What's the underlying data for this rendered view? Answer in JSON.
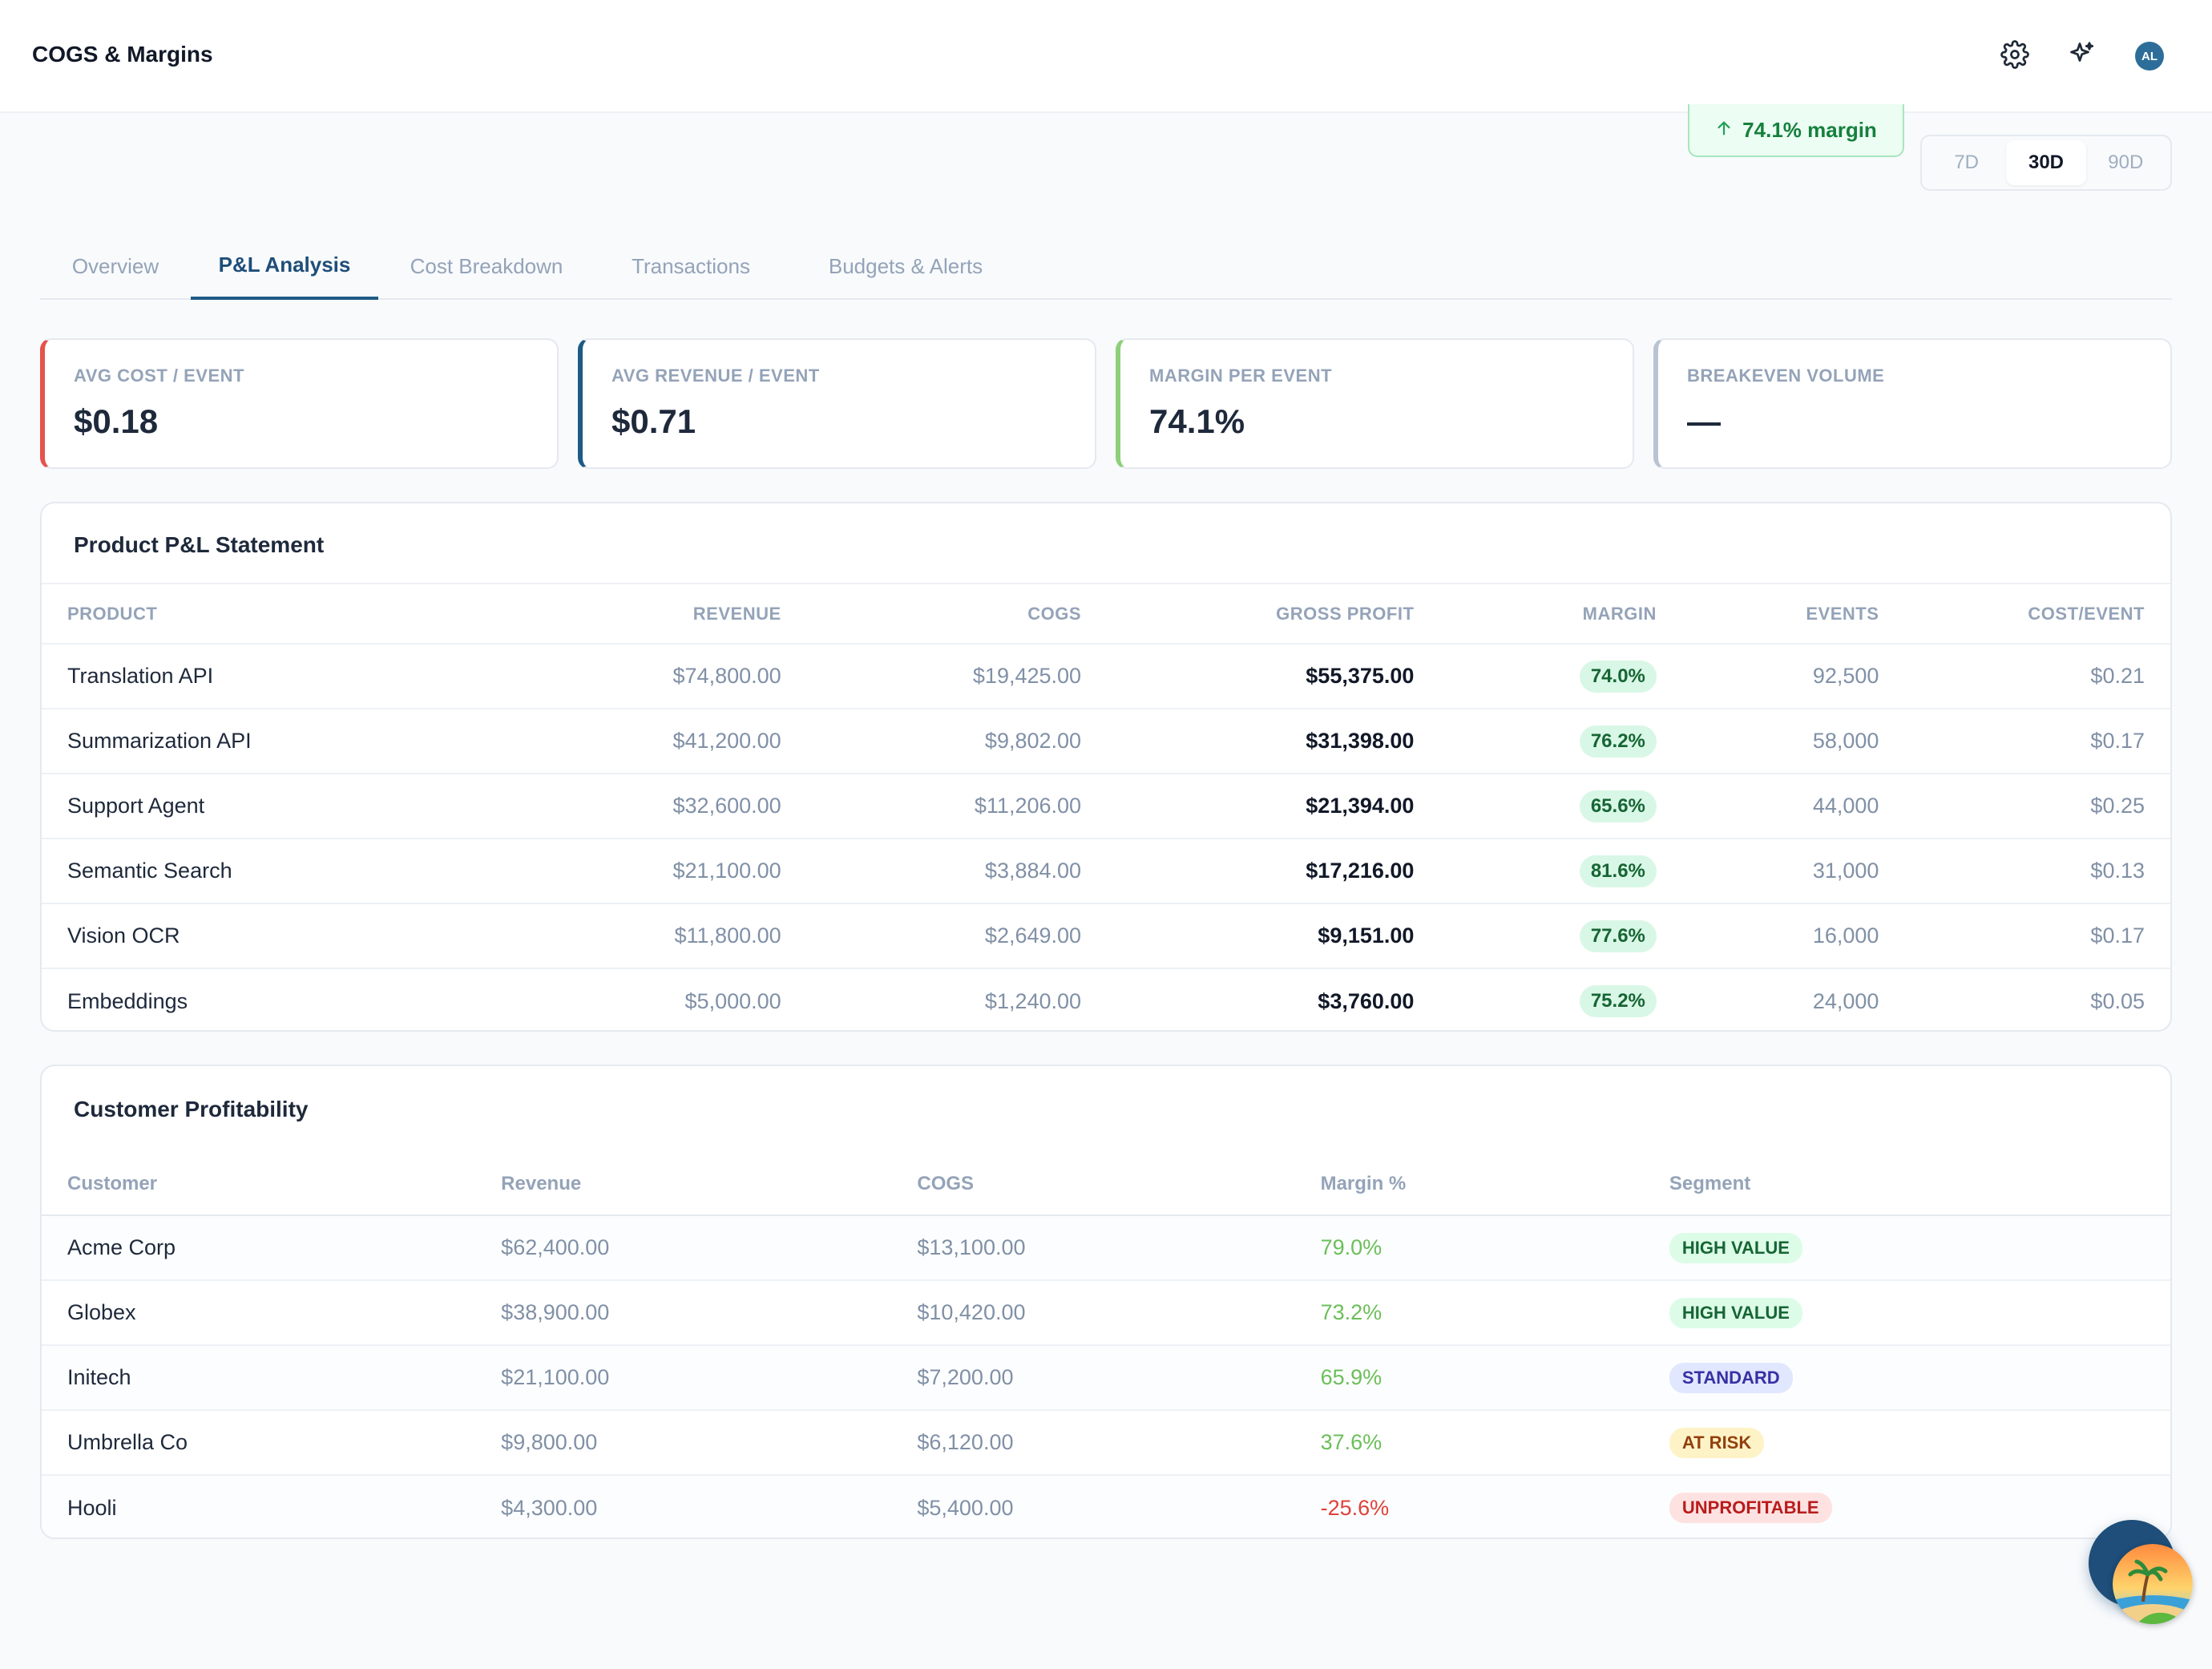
{
  "header": {
    "title": "COGS & Margins",
    "icons": [
      "settings-icon",
      "sparkle-icon"
    ],
    "avatar_initials": "AL"
  },
  "margin_pill": {
    "text": "74.1% margin",
    "icon": "arrow-up-icon",
    "color": "#15803d"
  },
  "range": {
    "options": [
      "7D",
      "30D",
      "90D"
    ],
    "selected": "30D"
  },
  "tabs": [
    "Overview",
    "P&L Analysis",
    "Cost Breakdown",
    "Transactions",
    "Budgets & Alerts"
  ],
  "active_tab": "P&L Analysis",
  "kpis": [
    {
      "label": "AVG COST / EVENT",
      "value": "$0.18",
      "accent": "#e5534b"
    },
    {
      "label": "AVG REVENUE / EVENT",
      "value": "$0.71",
      "accent": "#1e5a86"
    },
    {
      "label": "MARGIN PER EVENT",
      "value": "74.1%",
      "accent": "#8fcf7a"
    },
    {
      "label": "BREAKEVEN VOLUME",
      "value": "—",
      "accent": "#b8c4d2"
    }
  ],
  "pl": {
    "title": "Product P&L Statement",
    "columns": [
      "PRODUCT",
      "REVENUE",
      "COGS",
      "GROSS PROFIT",
      "MARGIN",
      "EVENTS",
      "COST/EVENT"
    ],
    "rows": [
      {
        "product": "Translation API",
        "revenue": "$74,800.00",
        "cogs": "$19,425.00",
        "gross_profit": "$55,375.00",
        "margin": "74.0%",
        "events": "92,500",
        "cost_event": "$0.21"
      },
      {
        "product": "Summarization API",
        "revenue": "$41,200.00",
        "cogs": "$9,802.00",
        "gross_profit": "$31,398.00",
        "margin": "76.2%",
        "events": "58,000",
        "cost_event": "$0.17"
      },
      {
        "product": "Support Agent",
        "revenue": "$32,600.00",
        "cogs": "$11,206.00",
        "gross_profit": "$21,394.00",
        "margin": "65.6%",
        "events": "44,000",
        "cost_event": "$0.25"
      },
      {
        "product": "Semantic Search",
        "revenue": "$21,100.00",
        "cogs": "$3,884.00",
        "gross_profit": "$17,216.00",
        "margin": "81.6%",
        "events": "31,000",
        "cost_event": "$0.13"
      },
      {
        "product": "Vision OCR",
        "revenue": "$11,800.00",
        "cogs": "$2,649.00",
        "gross_profit": "$9,151.00",
        "margin": "77.6%",
        "events": "16,000",
        "cost_event": "$0.17"
      },
      {
        "product": "Embeddings",
        "revenue": "$5,000.00",
        "cogs": "$1,240.00",
        "gross_profit": "$3,760.00",
        "margin": "75.2%",
        "events": "24,000",
        "cost_event": "$0.05"
      }
    ]
  },
  "customers": {
    "title": "Customer Profitability",
    "columns": [
      "Customer",
      "Revenue",
      "COGS",
      "Margin %",
      "Segment"
    ],
    "rows": [
      {
        "customer": "Acme Corp",
        "revenue": "$62,400.00",
        "cogs": "$13,100.00",
        "margin": "79.0%",
        "segment": "HIGH VALUE",
        "segment_kind": "high",
        "negative": false
      },
      {
        "customer": "Globex",
        "revenue": "$38,900.00",
        "cogs": "$10,420.00",
        "margin": "73.2%",
        "segment": "HIGH VALUE",
        "segment_kind": "high",
        "negative": false
      },
      {
        "customer": "Initech",
        "revenue": "$21,100.00",
        "cogs": "$7,200.00",
        "margin": "65.9%",
        "segment": "STANDARD",
        "segment_kind": "std",
        "negative": false
      },
      {
        "customer": "Umbrella Co",
        "revenue": "$9,800.00",
        "cogs": "$6,120.00",
        "margin": "37.6%",
        "segment": "AT RISK",
        "segment_kind": "risk",
        "negative": false
      },
      {
        "customer": "Hooli",
        "revenue": "$4,300.00",
        "cogs": "$5,400.00",
        "margin": "-25.6%",
        "segment": "UNPROFITABLE",
        "segment_kind": "unp",
        "negative": true
      }
    ]
  }
}
